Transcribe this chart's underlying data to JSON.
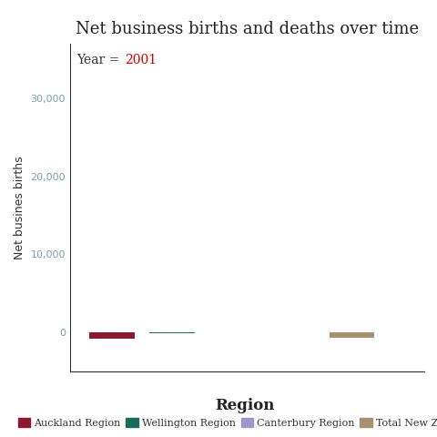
{
  "title": "Net business births and deaths over time",
  "subtitle_black": "Year = ",
  "subtitle_red": "2001",
  "ylabel": "Net busines births",
  "ylim": [
    -5000,
    37000
  ],
  "yticks": [
    0,
    10000,
    20000,
    30000
  ],
  "ytick_labels": [
    "0",
    "10,000",
    "20,000",
    "30,000"
  ],
  "regions": [
    "Auckland Region",
    "Wellington Region",
    "Canterbury Region",
    "Total New Zealand"
  ],
  "values": [
    -800,
    -150,
    -30,
    -650
  ],
  "colors": [
    "#8B1A2E",
    "#1B6B5A",
    "#9999CC",
    "#A89070"
  ],
  "x_positions": [
    1,
    2,
    3,
    5
  ],
  "bar_width": 0.75,
  "xlim": [
    0.3,
    6.2
  ],
  "background_color": "#ffffff",
  "title_fontsize": 13,
  "subtitle_fontsize": 10,
  "ylabel_fontsize": 9,
  "legend_title": "Region",
  "legend_title_fontsize": 12,
  "legend_fontsize": 8,
  "spine_color": "#333333",
  "tick_color": "#7B9BB5"
}
